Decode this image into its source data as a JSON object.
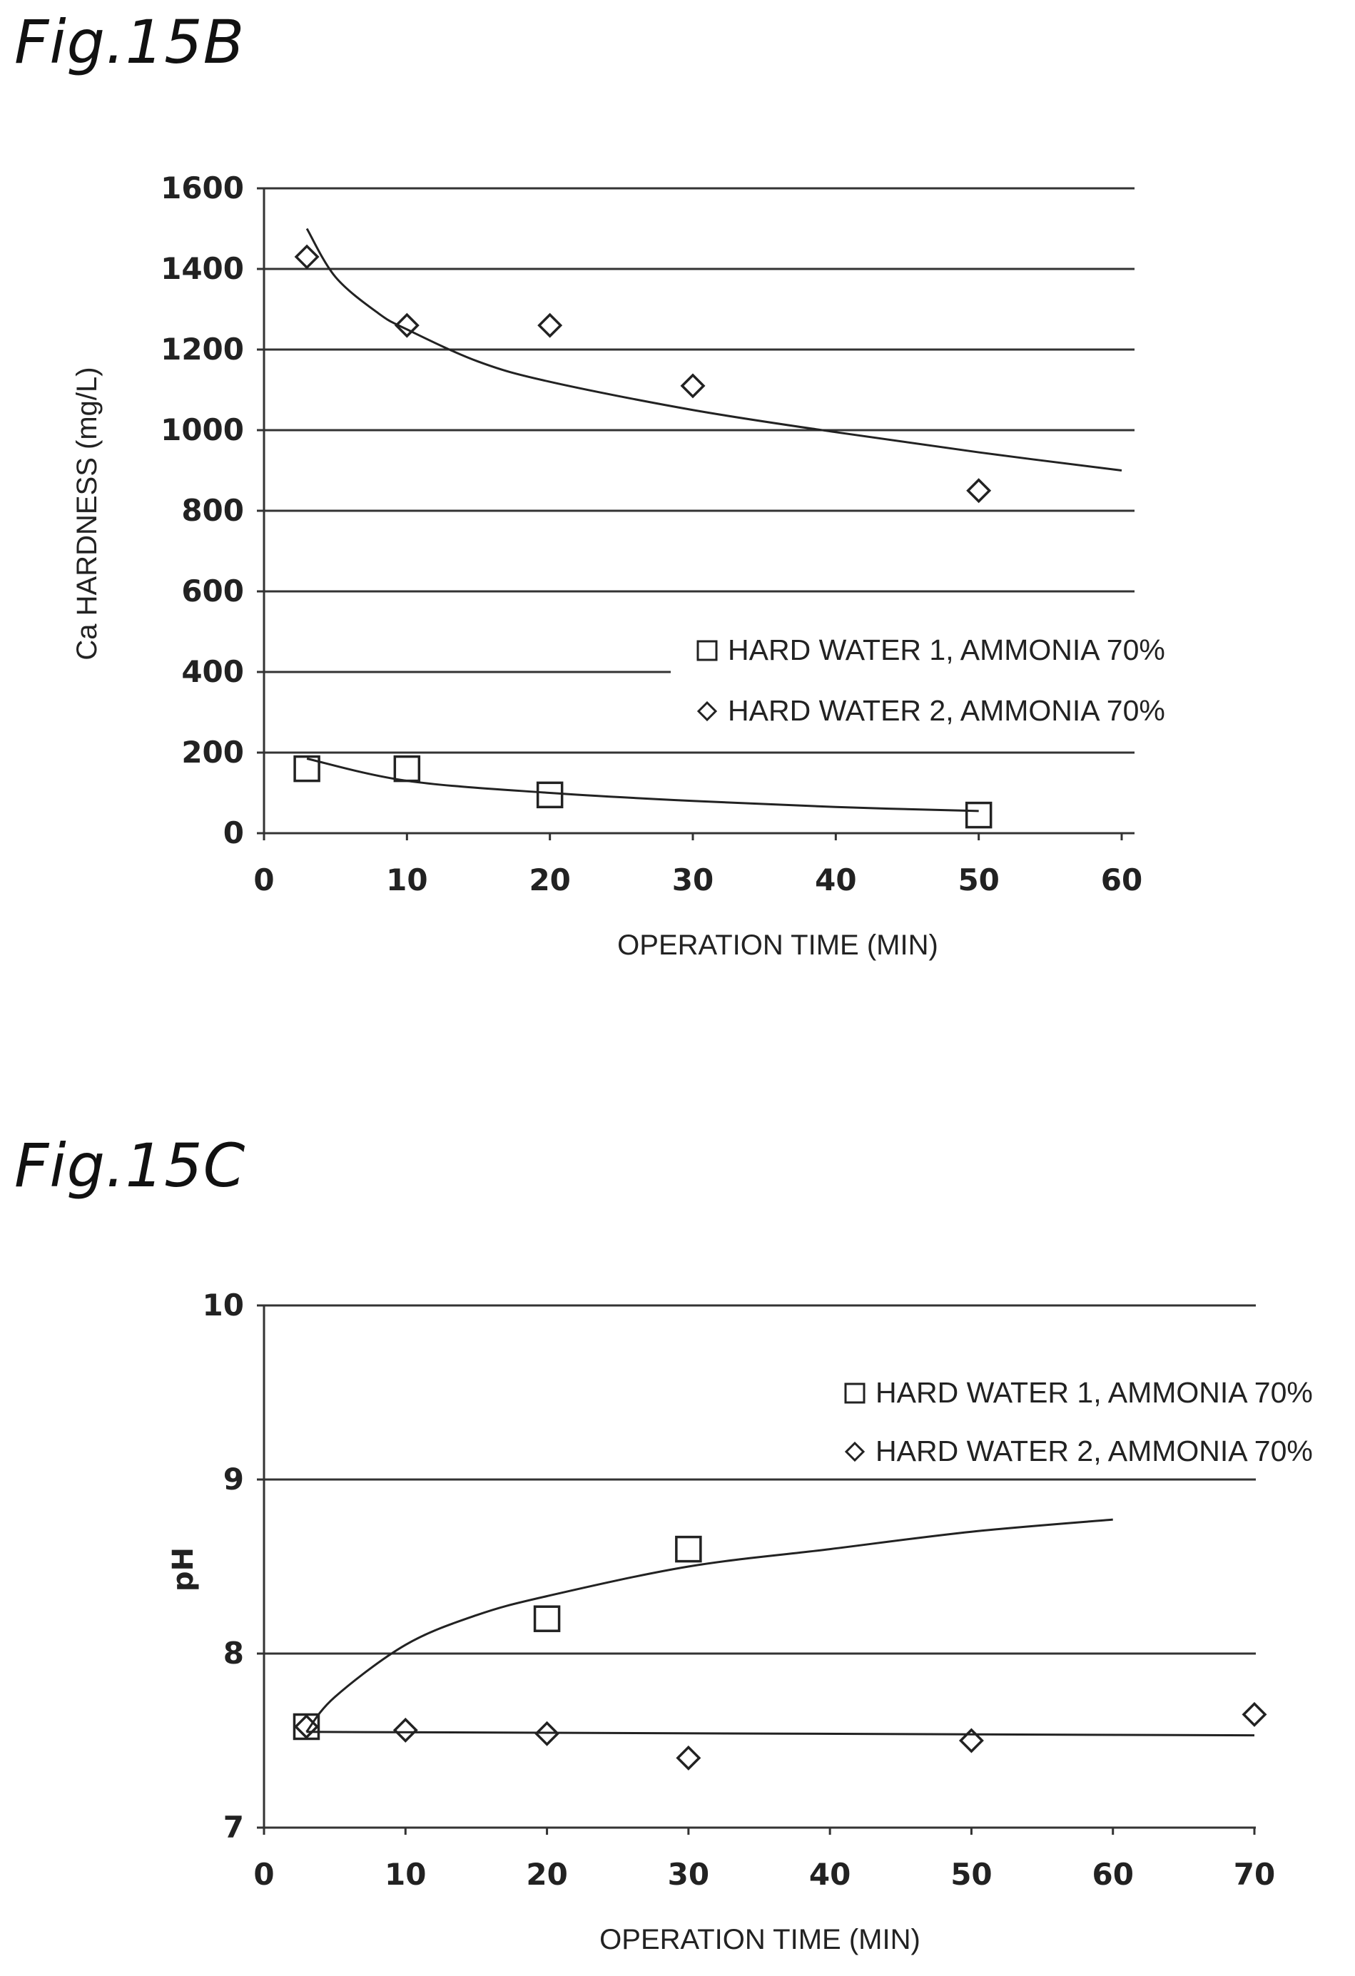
{
  "figures": {
    "b_title": "Fig.15B",
    "c_title": "Fig.15C"
  },
  "chart_data": [
    {
      "type": "scatter",
      "title": "Fig.15B",
      "xlabel": "OPERATION TIME (MIN)",
      "ylabel": "Ca HARDNESS (mg/L)",
      "xlim": [
        0,
        60
      ],
      "ylim": [
        0,
        1600
      ],
      "xticks": [
        0,
        10,
        20,
        30,
        40,
        50,
        60
      ],
      "yticks": [
        0,
        200,
        400,
        600,
        800,
        1000,
        1200,
        1400,
        1600
      ],
      "grid": "horizontal",
      "legend_position": "center-right",
      "series": [
        {
          "name": "HARD WATER 1, AMMONIA 70%",
          "marker": "square",
          "x": [
            3,
            10,
            20,
            50
          ],
          "y": [
            160,
            160,
            95,
            45
          ],
          "trend": {
            "x": [
              3,
              10,
              20,
              30,
              40,
              50
            ],
            "y": [
              185,
              130,
              100,
              80,
              65,
              55
            ]
          }
        },
        {
          "name": "HARD WATER 2, AMMONIA 70%",
          "marker": "diamond",
          "x": [
            3,
            10,
            20,
            30,
            50
          ],
          "y": [
            1430,
            1260,
            1260,
            1110,
            850
          ],
          "trend": {
            "x": [
              3,
              5,
              8,
              10,
              15,
              20,
              30,
              40,
              50,
              60
            ],
            "y": [
              1500,
              1380,
              1290,
              1250,
              1170,
              1120,
              1050,
              995,
              945,
              900
            ]
          }
        }
      ]
    },
    {
      "type": "scatter",
      "title": "Fig.15C",
      "xlabel": "OPERATION TIME (MIN)",
      "ylabel": "pH",
      "xlim": [
        0,
        70
      ],
      "ylim": [
        7,
        10
      ],
      "xticks": [
        0,
        10,
        20,
        30,
        40,
        50,
        60,
        70
      ],
      "yticks": [
        7,
        8,
        9,
        10
      ],
      "grid": "horizontal",
      "legend_position": "top-right",
      "series": [
        {
          "name": "HARD WATER 1, AMMONIA 70%",
          "marker": "square",
          "x": [
            3,
            20,
            30
          ],
          "y": [
            7.58,
            8.2,
            8.6
          ],
          "trend": {
            "x": [
              3,
              5,
              10,
              15,
              20,
              30,
              40,
              50,
              60
            ],
            "y": [
              7.55,
              7.75,
              8.05,
              8.22,
              8.33,
              8.5,
              8.6,
              8.7,
              8.77
            ]
          }
        },
        {
          "name": "HARD WATER 2, AMMONIA 70%",
          "marker": "diamond",
          "x": [
            3,
            10,
            20,
            30,
            50,
            70
          ],
          "y": [
            7.58,
            7.56,
            7.54,
            7.4,
            7.5,
            7.65
          ],
          "trend": {
            "x": [
              3,
              70
            ],
            "y": [
              7.55,
              7.53
            ]
          }
        }
      ]
    }
  ]
}
